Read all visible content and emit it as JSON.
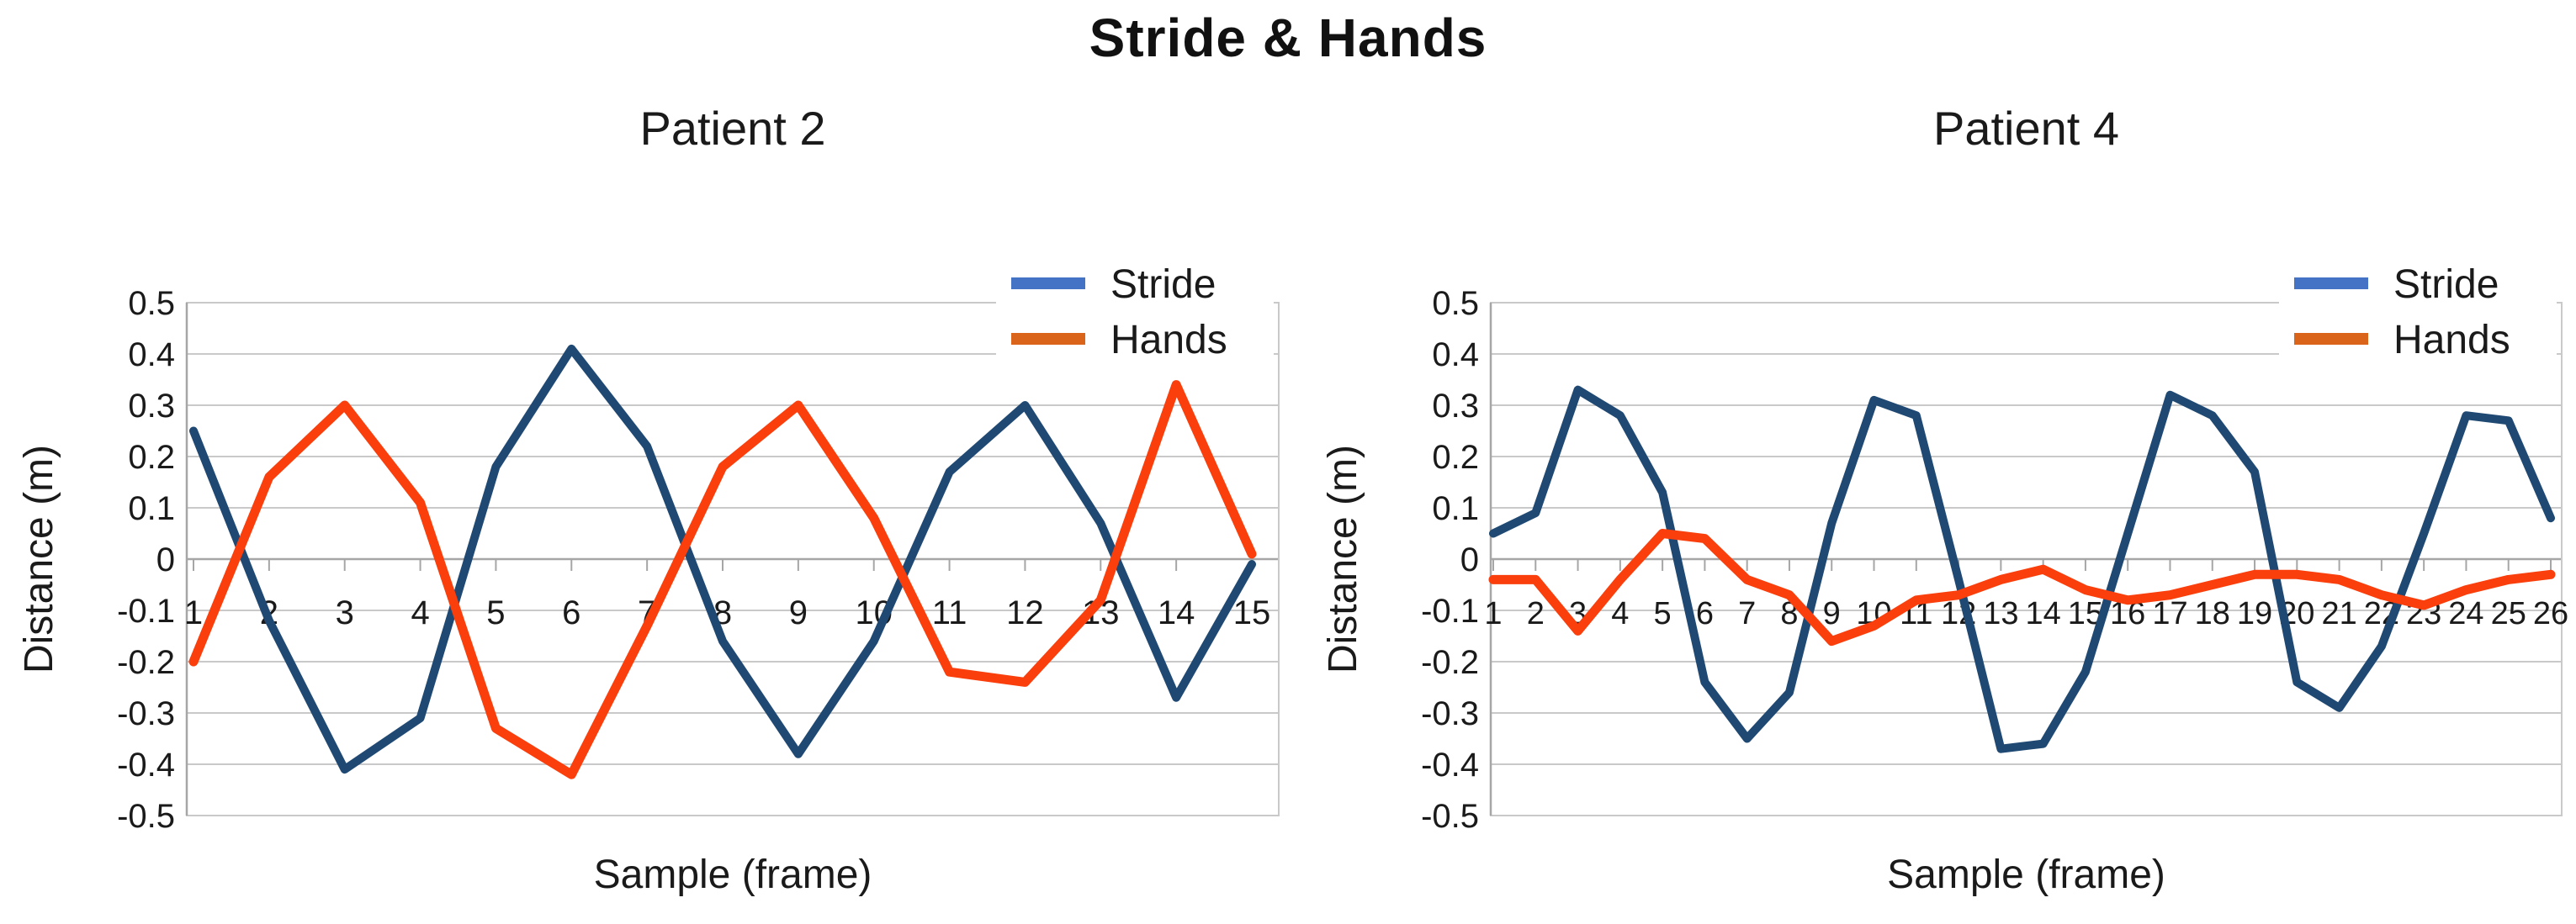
{
  "page": {
    "title": "Stride & Hands"
  },
  "colors": {
    "stride_line": "#1F4973",
    "hands_line": "#FA3E0C",
    "legend_stride_swatch": "#4472C4",
    "legend_hands_swatch": "#D9641A",
    "gridline": "#C9C9C9",
    "axis_line": "#A6A6A6",
    "text": "#1A1A1A"
  },
  "chart_data": [
    {
      "type": "line",
      "title": "Patient 2",
      "xlabel": "Sample (frame)",
      "ylabel": "Distance (m)",
      "ylim": [
        -0.5,
        0.5
      ],
      "ytick_labels": [
        "0.5",
        "0.4",
        "0.3",
        "0.2",
        "0.1",
        "0",
        "-0.1",
        "-0.2",
        "-0.3",
        "-0.4",
        "-0.5"
      ],
      "ytick_values": [
        0.5,
        0.4,
        0.3,
        0.2,
        0.1,
        0,
        -0.1,
        -0.2,
        -0.3,
        -0.4,
        -0.5
      ],
      "grid": true,
      "legend_position": "top-right",
      "categories": [
        1,
        2,
        3,
        4,
        5,
        6,
        7,
        8,
        9,
        10,
        11,
        12,
        13,
        14,
        15
      ],
      "series": [
        {
          "name": "Stride",
          "values": [
            0.25,
            -0.12,
            -0.41,
            -0.31,
            0.18,
            0.41,
            0.22,
            -0.16,
            -0.38,
            -0.16,
            0.17,
            0.3,
            0.07,
            -0.27,
            -0.01
          ]
        },
        {
          "name": "Hands",
          "values": [
            -0.2,
            0.16,
            0.3,
            0.11,
            -0.33,
            -0.42,
            -0.13,
            0.18,
            0.3,
            0.08,
            -0.22,
            -0.24,
            -0.08,
            0.34,
            0.01
          ]
        }
      ]
    },
    {
      "type": "line",
      "title": "Patient 4",
      "xlabel": "Sample (frame)",
      "ylabel": "Distance (m)",
      "ylim": [
        -0.5,
        0.5
      ],
      "ytick_labels": [
        "0.5",
        "0.4",
        "0.3",
        "0.2",
        "0.1",
        "0",
        "-0.1",
        "-0.2",
        "-0.3",
        "-0.4",
        "-0.5"
      ],
      "ytick_values": [
        0.5,
        0.4,
        0.3,
        0.2,
        0.1,
        0,
        -0.1,
        -0.2,
        -0.3,
        -0.4,
        -0.5
      ],
      "grid": true,
      "legend_position": "top-right",
      "categories": [
        1,
        2,
        3,
        4,
        5,
        6,
        7,
        8,
        9,
        10,
        11,
        12,
        13,
        14,
        15,
        16,
        17,
        18,
        19,
        20,
        21,
        22,
        23,
        24,
        25,
        26
      ],
      "series": [
        {
          "name": "Stride",
          "values": [
            0.05,
            0.09,
            0.33,
            0.28,
            0.13,
            -0.24,
            -0.35,
            -0.26,
            0.07,
            0.31,
            0.28,
            -0.04,
            -0.37,
            -0.36,
            -0.22,
            0.05,
            0.32,
            0.28,
            0.17,
            -0.24,
            -0.29,
            -0.17,
            0.05,
            0.28,
            0.27,
            0.08
          ]
        },
        {
          "name": "Hands",
          "values": [
            -0.04,
            -0.04,
            -0.14,
            -0.04,
            0.05,
            0.04,
            -0.04,
            -0.07,
            -0.16,
            -0.13,
            -0.08,
            -0.07,
            -0.04,
            -0.02,
            -0.06,
            -0.08,
            -0.07,
            -0.05,
            -0.03,
            -0.03,
            -0.04,
            -0.07,
            -0.09,
            -0.06,
            -0.04,
            -0.03
          ]
        }
      ]
    }
  ]
}
